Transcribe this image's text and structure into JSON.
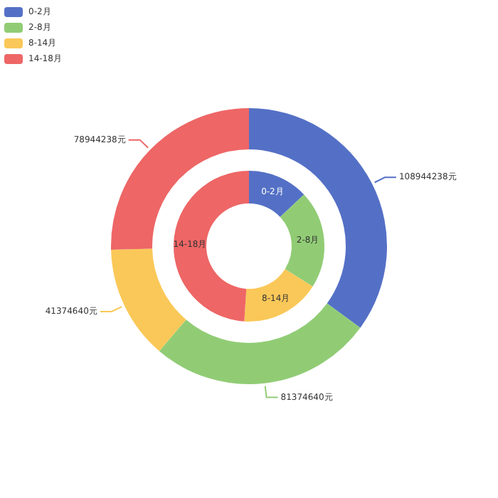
{
  "chart_data": {
    "type": "donut",
    "categories": [
      "0-2月",
      "2-8月",
      "8-14月",
      "14-18月"
    ],
    "colors": [
      "#5470c6",
      "#91cc75",
      "#fac858",
      "#ee6666"
    ],
    "legend": "top left",
    "series": [
      {
        "values": [
          108944238,
          81374640,
          41374640,
          78944238
        ],
        "value_labels": [
          "108944238元",
          "81374640元",
          "41374640元",
          "78944238元"
        ]
      },
      {
        "values": [
          13,
          21,
          17,
          49
        ],
        "value_labels": [
          "0-2月",
          "2-8月",
          "8-14月",
          "14-18月"
        ]
      }
    ]
  }
}
